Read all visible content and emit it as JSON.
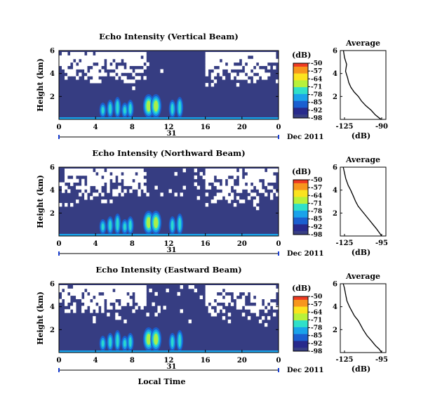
{
  "chart_data": {
    "type": "heatmap",
    "x_axis_label": "Local Time",
    "date_label": "Dec 2011",
    "day_label": "31",
    "x_ticks": [
      "0",
      "4",
      "8",
      "12",
      "16",
      "20",
      "0"
    ],
    "y_label": "Height (km)",
    "y_ticks": [
      "6",
      "4",
      "2"
    ],
    "colorbar": {
      "unit": "(dB)",
      "ticks": [
        "-50",
        "-57",
        "-64",
        "-71",
        "-78",
        "-85",
        "-92",
        "-98"
      ],
      "colors": [
        "#ef3b22",
        "#f7961d",
        "#fbe31e",
        "#b7f13b",
        "#2fe0c9",
        "#1aa3ea",
        "#1b5fd0",
        "#282a8c"
      ]
    },
    "background_color": "#363d82",
    "average": {
      "title": "Average",
      "xlabel": "(dB)",
      "y_ticks": [
        "6",
        "4",
        "2"
      ]
    },
    "panels": [
      {
        "title": "Echo Intensity (Vertical Beam)",
        "average_x_ticks": [
          "-125",
          "-90"
        ],
        "missing_rows_fraction": [
          0.98,
          0.9,
          0.82,
          0.72,
          0.64,
          0.55,
          0.45,
          0.33,
          0.2,
          0.1,
          0.04,
          0.0,
          0.0,
          0.0,
          0.0
        ],
        "average_profile": [
          [
            -126,
            6.0
          ],
          [
            -125,
            5.4
          ],
          [
            -123,
            4.8
          ],
          [
            -124,
            4.2
          ],
          [
            -122,
            3.6
          ],
          [
            -121,
            3.2
          ],
          [
            -119,
            2.8
          ],
          [
            -116,
            2.4
          ],
          [
            -112,
            2.0
          ],
          [
            -109,
            1.6
          ],
          [
            -105,
            1.2
          ],
          [
            -100,
            0.8
          ],
          [
            -96,
            0.4
          ],
          [
            -92,
            0.1
          ],
          [
            -90,
            0.0
          ]
        ]
      },
      {
        "title": "Echo Intensity (Northward Beam)",
        "average_x_ticks": [
          "-125",
          "-95"
        ],
        "missing_rows_fraction": [
          0.95,
          0.88,
          0.8,
          0.7,
          0.6,
          0.52,
          0.45,
          0.38,
          0.3,
          0.2,
          0.1,
          0.03,
          0.0,
          0.0,
          0.0
        ],
        "average_profile": [
          [
            -126,
            6.0
          ],
          [
            -125,
            5.5
          ],
          [
            -124,
            5.0
          ],
          [
            -122,
            4.4
          ],
          [
            -120,
            4.0
          ],
          [
            -118,
            3.5
          ],
          [
            -116,
            3.0
          ],
          [
            -114,
            2.6
          ],
          [
            -111,
            2.2
          ],
          [
            -108,
            1.8
          ],
          [
            -105,
            1.4
          ],
          [
            -102,
            1.0
          ],
          [
            -99,
            0.6
          ],
          [
            -97,
            0.3
          ],
          [
            -95,
            0.0
          ]
        ]
      },
      {
        "title": "Echo Intensity (Eastward Beam)",
        "average_x_ticks": [
          "-125",
          "-95"
        ],
        "missing_rows_fraction": [
          0.97,
          0.92,
          0.82,
          0.72,
          0.62,
          0.52,
          0.42,
          0.32,
          0.22,
          0.12,
          0.05,
          0.01,
          0.0,
          0.0,
          0.0
        ],
        "average_profile": [
          [
            -126,
            6.0
          ],
          [
            -125,
            5.6
          ],
          [
            -124,
            5.0
          ],
          [
            -123,
            4.5
          ],
          [
            -121,
            4.0
          ],
          [
            -119,
            3.6
          ],
          [
            -117,
            3.2
          ],
          [
            -114,
            2.8
          ],
          [
            -112,
            2.4
          ],
          [
            -110,
            2.0
          ],
          [
            -107,
            1.5
          ],
          [
            -103,
            1.0
          ],
          [
            -100,
            0.6
          ],
          [
            -97,
            0.3
          ],
          [
            -95,
            0.0
          ]
        ]
      }
    ]
  }
}
